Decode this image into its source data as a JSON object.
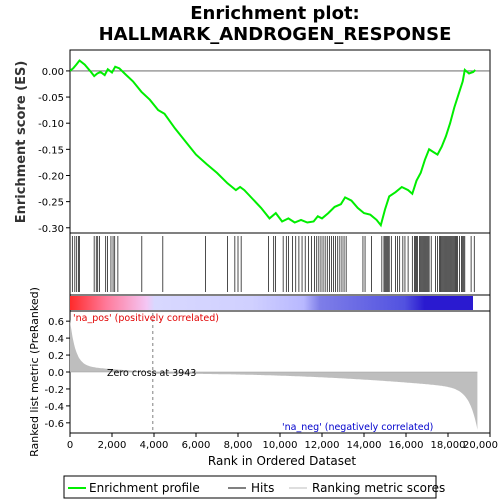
{
  "chart_data": {
    "type": "line",
    "title_line1": "Enrichment plot:",
    "title_line2": "HALLMARK_ANDROGEN_RESPONSE",
    "xlabel": "Rank in Ordered Dataset",
    "ylabel_top": "Enrichment score (ES)",
    "ylabel_bottom": "Ranked list metric (PreRanked)",
    "xlim": [
      0,
      20000
    ],
    "x_ticks": [
      0,
      2000,
      4000,
      6000,
      8000,
      10000,
      12000,
      14000,
      16000,
      18000,
      20000
    ],
    "x_tick_labels": [
      "0",
      "2,000",
      "4,000",
      "6,000",
      "8,000",
      "10,000",
      "12,000",
      "14,000",
      "16,000",
      "18,000",
      "20,000"
    ],
    "es_ylim": [
      -0.31,
      0.04
    ],
    "es_ticks": [
      0.0,
      -0.05,
      -0.1,
      -0.15,
      -0.2,
      -0.25,
      -0.3
    ],
    "es_tick_labels": [
      "0.00",
      "-0.05",
      "-0.10",
      "-0.15",
      "-0.20",
      "-0.25",
      "-0.30"
    ],
    "metric_ylim": [
      -0.72,
      0.72
    ],
    "metric_ticks": [
      0.6,
      0.4,
      0.2,
      0.0,
      -0.2,
      -0.4,
      -0.6
    ],
    "metric_tick_labels": [
      "0.6",
      "0.4",
      "0.2",
      "0.0",
      "-0.2",
      "-0.4",
      "-0.6"
    ],
    "n_genes": 19400,
    "zero_cross": 3943,
    "zero_cross_label": "Zero cross at 3943",
    "pos_label": "'na_pos' (positively correlated)",
    "neg_label": "'na_neg' (negatively correlated)",
    "es_curve": [
      [
        0,
        0.0
      ],
      [
        150,
        0.005
      ],
      [
        300,
        0.012
      ],
      [
        450,
        0.02
      ],
      [
        700,
        0.012
      ],
      [
        1000,
        -0.002
      ],
      [
        1150,
        -0.01
      ],
      [
        1300,
        -0.005
      ],
      [
        1450,
        -0.002
      ],
      [
        1650,
        -0.008
      ],
      [
        1800,
        0.003
      ],
      [
        2000,
        -0.003
      ],
      [
        2150,
        0.008
      ],
      [
        2350,
        0.005
      ],
      [
        2600,
        -0.005
      ],
      [
        3000,
        -0.02
      ],
      [
        3400,
        -0.04
      ],
      [
        3800,
        -0.055
      ],
      [
        4200,
        -0.075
      ],
      [
        4500,
        -0.082
      ],
      [
        5000,
        -0.11
      ],
      [
        5500,
        -0.135
      ],
      [
        6000,
        -0.16
      ],
      [
        6500,
        -0.178
      ],
      [
        7000,
        -0.195
      ],
      [
        7500,
        -0.215
      ],
      [
        7900,
        -0.228
      ],
      [
        8100,
        -0.222
      ],
      [
        8300,
        -0.228
      ],
      [
        8700,
        -0.245
      ],
      [
        9100,
        -0.262
      ],
      [
        9500,
        -0.282
      ],
      [
        9800,
        -0.272
      ],
      [
        10100,
        -0.288
      ],
      [
        10400,
        -0.282
      ],
      [
        10700,
        -0.29
      ],
      [
        11000,
        -0.285
      ],
      [
        11300,
        -0.29
      ],
      [
        11600,
        -0.288
      ],
      [
        11800,
        -0.278
      ],
      [
        12000,
        -0.282
      ],
      [
        12300,
        -0.272
      ],
      [
        12600,
        -0.26
      ],
      [
        12900,
        -0.255
      ],
      [
        13100,
        -0.242
      ],
      [
        13400,
        -0.248
      ],
      [
        13700,
        -0.262
      ],
      [
        14000,
        -0.272
      ],
      [
        14300,
        -0.275
      ],
      [
        14600,
        -0.285
      ],
      [
        14800,
        -0.295
      ],
      [
        15000,
        -0.265
      ],
      [
        15200,
        -0.24
      ],
      [
        15500,
        -0.232
      ],
      [
        15800,
        -0.222
      ],
      [
        16100,
        -0.228
      ],
      [
        16300,
        -0.235
      ],
      [
        16500,
        -0.21
      ],
      [
        16700,
        -0.195
      ],
      [
        16900,
        -0.17
      ],
      [
        17100,
        -0.15
      ],
      [
        17300,
        -0.155
      ],
      [
        17500,
        -0.16
      ],
      [
        17700,
        -0.145
      ],
      [
        17900,
        -0.125
      ],
      [
        18100,
        -0.1
      ],
      [
        18300,
        -0.07
      ],
      [
        18500,
        -0.045
      ],
      [
        18700,
        -0.02
      ],
      [
        18800,
        0.002
      ],
      [
        19000,
        -0.005
      ],
      [
        19200,
        -0.002
      ],
      [
        19300,
        0.002
      ]
    ],
    "hits": [
      110,
      230,
      320,
      400,
      460,
      1150,
      1250,
      1320,
      1400,
      1700,
      1780,
      1950,
      2050,
      2130,
      2280,
      3420,
      4420,
      6450,
      7500,
      7850,
      8000,
      8150,
      9450,
      9700,
      9780,
      10150,
      10300,
      10400,
      10600,
      10750,
      10900,
      11050,
      11200,
      11350,
      11500,
      11650,
      11750,
      11850,
      11950,
      12050,
      12150,
      12250,
      12350,
      12450,
      12550,
      12650,
      12750,
      12850,
      12950,
      13050,
      13150,
      13950,
      14050,
      14350,
      14850,
      14950,
      15000,
      15050,
      15100,
      15150,
      15200,
      15300,
      15500,
      15600,
      15700,
      15850,
      15950,
      16100,
      16300,
      16400,
      16450,
      16500,
      16550,
      16650,
      16700,
      16750,
      16800,
      16850,
      16900,
      16950,
      17000,
      17050,
      17100,
      17200,
      17400,
      17500,
      17600,
      17650,
      17700,
      17750,
      17800,
      17850,
      17900,
      17950,
      18000,
      18050,
      18100,
      18150,
      18200,
      18250,
      18300,
      18350,
      18400,
      18450,
      18550,
      18650,
      18700,
      18750,
      18800,
      19100,
      19250
    ],
    "legend": [
      {
        "label": "Enrichment profile",
        "color": "#00ee00"
      },
      {
        "label": "Hits",
        "color": "#000000"
      },
      {
        "label": "Ranking metric scores",
        "color": "#bebebe"
      }
    ],
    "colors": {
      "es_line": "#00ee00",
      "hits": "#000000",
      "metric": "#bebebe",
      "pos_text": "#e00000",
      "neg_text": "#0000cc",
      "zero_line": "#808080"
    }
  }
}
